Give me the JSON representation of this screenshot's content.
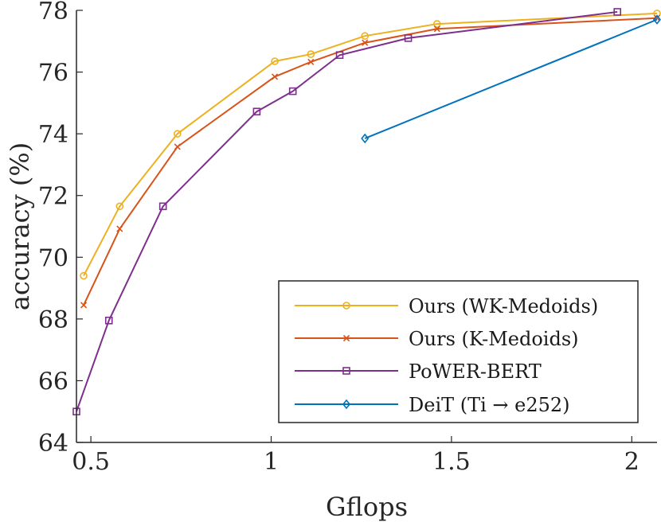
{
  "chart_data": {
    "type": "line",
    "title": "",
    "xlabel": "Gflops",
    "ylabel": "accuracy (%)",
    "xlim": [
      0.46,
      2.07
    ],
    "ylim": [
      64,
      78
    ],
    "xticks": [
      0.5,
      1,
      1.5,
      2
    ],
    "xtick_labels": [
      "0.5",
      "1",
      "1.5",
      "2"
    ],
    "yticks": [
      64,
      66,
      68,
      70,
      72,
      74,
      76,
      78
    ],
    "ytick_labels": [
      "64",
      "66",
      "68",
      "70",
      "72",
      "74",
      "76",
      "78"
    ],
    "grid": false,
    "legend_position": "bottom-right",
    "series": [
      {
        "name": "Ours (WK-Medoids)",
        "color": "#EDB120",
        "marker": "circle",
        "x": [
          0.48,
          0.58,
          0.74,
          1.01,
          1.11,
          1.26,
          1.46,
          2.07
        ],
        "y": [
          69.4,
          71.65,
          74.0,
          76.35,
          76.58,
          77.17,
          77.56,
          77.9
        ]
      },
      {
        "name": "Ours (K-Medoids)",
        "color": "#D95319",
        "marker": "x",
        "x": [
          0.48,
          0.58,
          0.74,
          1.01,
          1.11,
          1.26,
          1.46,
          2.07
        ],
        "y": [
          68.45,
          70.92,
          73.58,
          75.85,
          76.33,
          76.95,
          77.4,
          77.75
        ]
      },
      {
        "name": "PoWER-BERT",
        "color": "#7E2F8E",
        "marker": "square",
        "x": [
          0.46,
          0.55,
          0.7,
          0.96,
          1.06,
          1.19,
          1.38,
          1.96
        ],
        "y": [
          65.0,
          67.95,
          71.65,
          74.72,
          75.38,
          76.55,
          77.1,
          77.95
        ]
      },
      {
        "name": "DeiT (Ti → e252)",
        "color": "#0072BD",
        "marker": "diamond",
        "x": [
          1.26,
          2.07
        ],
        "y": [
          73.85,
          77.7
        ]
      }
    ]
  }
}
